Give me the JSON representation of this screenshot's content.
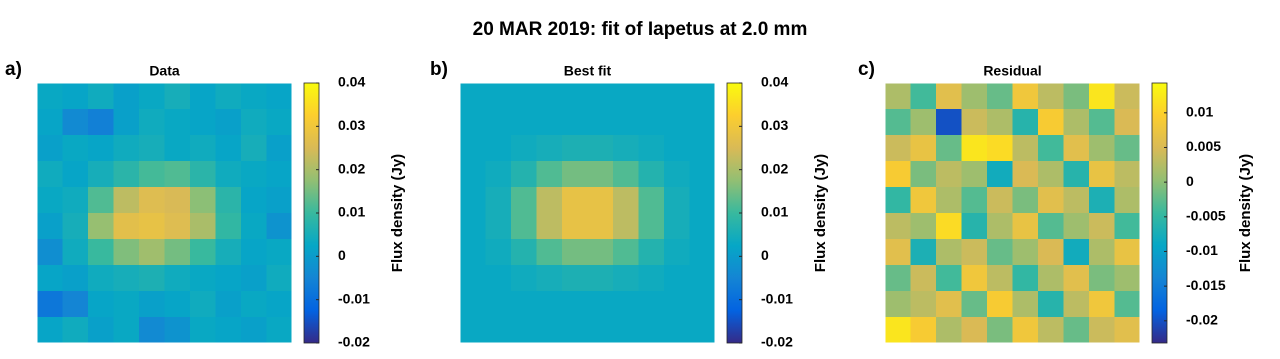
{
  "title": "20 MAR 2019: fit of Iapetus at 2.0 mm",
  "chart_data": [
    {
      "type": "heatmap",
      "panel_label": "a)",
      "title": "Data",
      "colorbar_label": "Flux density (Jy)",
      "colormap": [
        "#352a87",
        "#0363e1",
        "#1485d4",
        "#06a7c6",
        "#38b99e",
        "#92bf73",
        "#d9ba56",
        "#fcce2e",
        "#f9fb0e"
      ],
      "clim": [
        -0.02,
        0.04
      ],
      "cticks": [
        -0.02,
        -0.01,
        0,
        0.01,
        0.02,
        0.03,
        0.04
      ],
      "z": [
        [
          0.003,
          0.002,
          0.004,
          0.001,
          0.003,
          0.005,
          0.002,
          0.004,
          0.003,
          0.002
        ],
        [
          0.002,
          -0.004,
          -0.006,
          0.001,
          0.004,
          0.003,
          0.002,
          0.001,
          0.004,
          0.003
        ],
        [
          0.001,
          0.003,
          0.002,
          0.004,
          0.005,
          0.003,
          0.004,
          0.002,
          0.005,
          0.001
        ],
        [
          0.004,
          0.002,
          0.005,
          0.008,
          0.011,
          0.012,
          0.008,
          0.004,
          0.003,
          0.002
        ],
        [
          0.003,
          0.004,
          0.012,
          0.022,
          0.026,
          0.025,
          0.017,
          0.008,
          0.002,
          0.001
        ],
        [
          0.001,
          0.005,
          0.018,
          0.027,
          0.028,
          0.026,
          0.02,
          0.009,
          0.003,
          -0.002
        ],
        [
          -0.003,
          0.004,
          0.01,
          0.016,
          0.019,
          0.015,
          0.01,
          0.005,
          0.002,
          0.003
        ],
        [
          0.002,
          0.001,
          0.004,
          0.005,
          0.006,
          0.004,
          0.003,
          0.002,
          0.001,
          0.004
        ],
        [
          -0.008,
          -0.005,
          0.002,
          0.003,
          0.001,
          0.002,
          0.004,
          0.001,
          0.003,
          0.002
        ],
        [
          0.002,
          0.004,
          0.001,
          0.003,
          -0.004,
          -0.002,
          0.003,
          0.002,
          0.001,
          0.003
        ]
      ]
    },
    {
      "type": "heatmap",
      "panel_label": "b)",
      "title": "Best fit",
      "colorbar_label": "Flux density (Jy)",
      "colormap": [
        "#352a87",
        "#0363e1",
        "#1485d4",
        "#06a7c6",
        "#38b99e",
        "#92bf73",
        "#d9ba56",
        "#fcce2e",
        "#f9fb0e"
      ],
      "clim": [
        -0.02,
        0.04
      ],
      "cticks": [
        -0.02,
        -0.01,
        0,
        0.01,
        0.02,
        0.03,
        0.04
      ],
      "z": [
        [
          0.003,
          0.003,
          0.003,
          0.003,
          0.003,
          0.003,
          0.003,
          0.003,
          0.003,
          0.003
        ],
        [
          0.003,
          0.003,
          0.003,
          0.003,
          0.003,
          0.003,
          0.003,
          0.003,
          0.003,
          0.003
        ],
        [
          0.003,
          0.003,
          0.004,
          0.005,
          0.006,
          0.006,
          0.005,
          0.004,
          0.003,
          0.003
        ],
        [
          0.003,
          0.004,
          0.007,
          0.012,
          0.015,
          0.015,
          0.012,
          0.007,
          0.004,
          0.003
        ],
        [
          0.003,
          0.005,
          0.012,
          0.022,
          0.028,
          0.028,
          0.022,
          0.012,
          0.005,
          0.003
        ],
        [
          0.003,
          0.005,
          0.012,
          0.022,
          0.028,
          0.028,
          0.022,
          0.012,
          0.005,
          0.003
        ],
        [
          0.003,
          0.004,
          0.007,
          0.012,
          0.015,
          0.015,
          0.012,
          0.007,
          0.004,
          0.003
        ],
        [
          0.003,
          0.003,
          0.004,
          0.005,
          0.006,
          0.006,
          0.005,
          0.004,
          0.003,
          0.003
        ],
        [
          0.003,
          0.003,
          0.003,
          0.003,
          0.003,
          0.003,
          0.003,
          0.003,
          0.003,
          0.003
        ],
        [
          0.003,
          0.003,
          0.003,
          0.003,
          0.003,
          0.003,
          0.003,
          0.003,
          0.003,
          0.003
        ]
      ]
    },
    {
      "type": "heatmap",
      "panel_label": "c)",
      "title": "Residual",
      "colorbar_label": "Flux density (Jy)",
      "colormap": [
        "#352a87",
        "#0363e1",
        "#1485d4",
        "#06a7c6",
        "#38b99e",
        "#92bf73",
        "#d9ba56",
        "#fcce2e",
        "#f9fb0e"
      ],
      "clim": [
        -0.0232,
        0.0143
      ],
      "cticks": [
        -0.02,
        -0.015,
        -0.01,
        -0.005,
        0,
        0.005,
        0.01
      ],
      "z": [
        [
          0.002,
          -0.004,
          0.006,
          0.001,
          -0.002,
          0.008,
          0.003,
          -0.001,
          0.012,
          0.004
        ],
        [
          -0.003,
          0.001,
          -0.02,
          0.004,
          0.002,
          -0.006,
          0.009,
          0.002,
          -0.003,
          0.005
        ],
        [
          0.004,
          0.007,
          -0.002,
          0.012,
          0.011,
          0.003,
          -0.004,
          0.006,
          0.001,
          -0.002
        ],
        [
          0.009,
          -0.001,
          0.003,
          0.001,
          -0.008,
          0.005,
          0.002,
          -0.006,
          0.007,
          0.003
        ],
        [
          -0.005,
          0.008,
          0.002,
          -0.003,
          0.004,
          -0.001,
          0.006,
          0.003,
          -0.007,
          0.002
        ],
        [
          0.003,
          0.001,
          0.011,
          -0.006,
          0.002,
          0.007,
          -0.003,
          0.001,
          0.004,
          -0.004
        ],
        [
          0.006,
          -0.007,
          0.002,
          0.004,
          -0.002,
          0.001,
          0.005,
          -0.008,
          0.002,
          0.007
        ],
        [
          -0.002,
          0.004,
          -0.004,
          0.008,
          0.003,
          -0.005,
          0.002,
          0.006,
          -0.001,
          0.001
        ],
        [
          0.001,
          0.003,
          0.006,
          -0.002,
          0.009,
          0.002,
          -0.006,
          0.003,
          0.008,
          -0.003
        ],
        [
          0.012,
          0.009,
          0.002,
          0.005,
          -0.001,
          0.008,
          0.003,
          -0.002,
          0.004,
          0.006
        ]
      ]
    }
  ]
}
